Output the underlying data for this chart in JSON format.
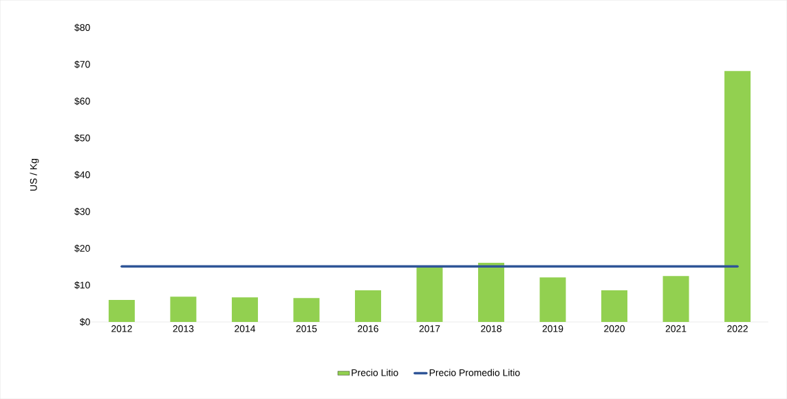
{
  "chart_data": {
    "type": "bar",
    "ylabel": "US / Kg",
    "categories": [
      "2012",
      "2013",
      "2014",
      "2015",
      "2016",
      "2017",
      "2018",
      "2019",
      "2020",
      "2021",
      "2022"
    ],
    "series": [
      {
        "name": "Precio Litio",
        "color": "#92d050",
        "values": [
          6.0,
          6.9,
          6.7,
          6.5,
          8.6,
          15.3,
          16.1,
          12.1,
          8.6,
          12.5,
          68.2
        ]
      },
      {
        "name": "Precio Promedio Litio",
        "type": "line",
        "color": "#2f5597",
        "values": [
          15.1,
          15.1,
          15.1,
          15.1,
          15.1,
          15.1,
          15.1,
          15.1,
          15.1,
          15.1,
          15.1
        ]
      }
    ],
    "ylim": [
      0,
      80
    ],
    "yticks": [
      {
        "value": 0,
        "label": "$0"
      },
      {
        "value": 10,
        "label": "$10"
      },
      {
        "value": 20,
        "label": "$20"
      },
      {
        "value": 30,
        "label": "$30"
      },
      {
        "value": 40,
        "label": "$40"
      },
      {
        "value": 50,
        "label": "$50"
      },
      {
        "value": 60,
        "label": "$60"
      },
      {
        "value": 70,
        "label": "$70"
      },
      {
        "value": 80,
        "label": "$80"
      }
    ],
    "legend": "bottom"
  }
}
